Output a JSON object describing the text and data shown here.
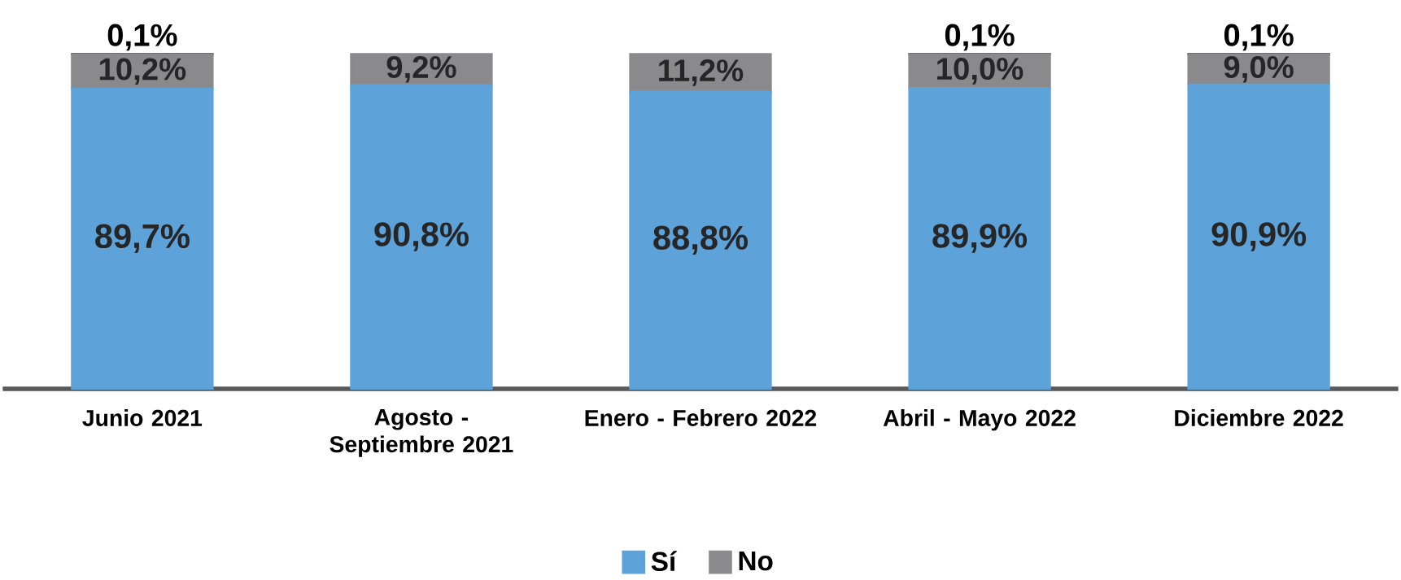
{
  "chart_data": {
    "type": "bar",
    "stacked": true,
    "categories": [
      "Junio 2021",
      "Agosto - Septiembre 2021",
      "Enero - Febrero 2022",
      "Abril - Mayo 2022",
      "Diciembre 2022"
    ],
    "series": [
      {
        "name": "Sí",
        "color": "#5da2d8",
        "values": [
          89.7,
          90.8,
          88.8,
          89.9,
          90.9
        ],
        "value_labels": [
          "89,7%",
          "90,8%",
          "88,8%",
          "89,9%",
          "90,9%"
        ]
      },
      {
        "name": "No",
        "color": "#8a8a8c",
        "values": [
          10.2,
          9.2,
          11.2,
          10.0,
          9.0
        ],
        "value_labels": [
          "10,2%",
          "9,2%",
          "11,2%",
          "10,0%",
          "9,0%"
        ]
      },
      {
        "color": "#2b2a6e",
        "values": [
          0.1,
          null,
          null,
          0.1,
          0.1
        ],
        "value_labels": [
          "0,1%",
          null,
          null,
          "0,1%",
          "0,1%"
        ]
      }
    ],
    "legend": "bottom"
  }
}
